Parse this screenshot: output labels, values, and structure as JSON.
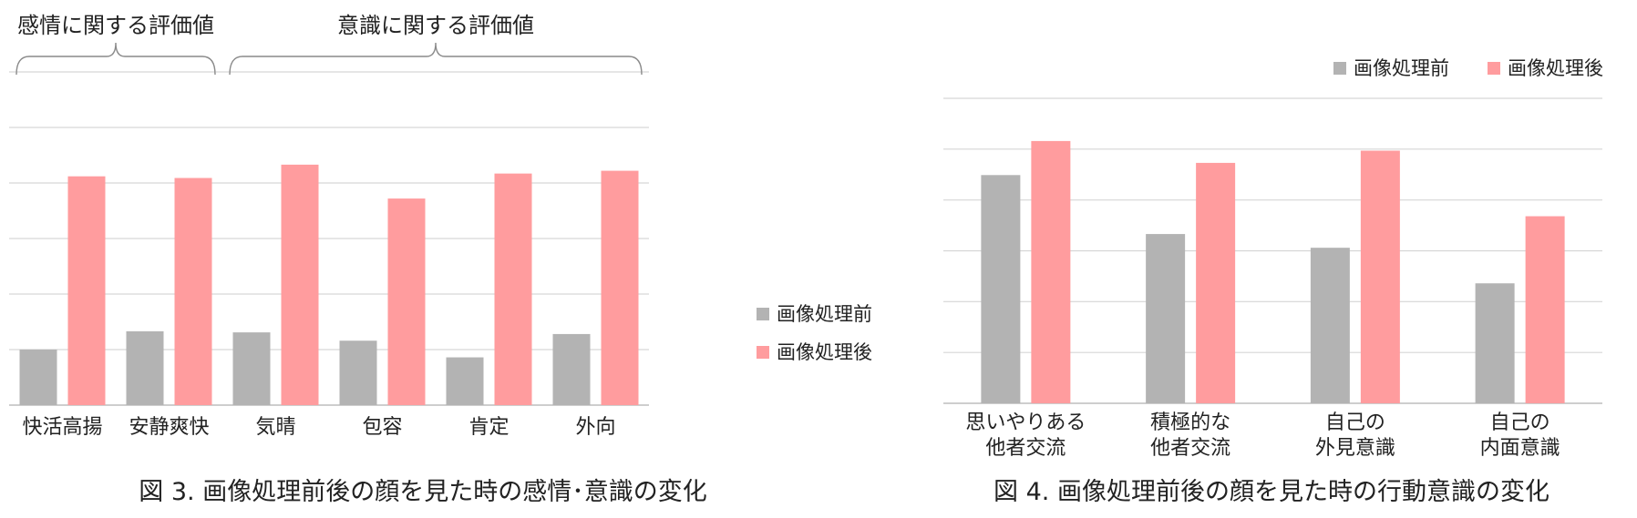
{
  "colors": {
    "before": "#b3b3b3",
    "after": "#ff9c9e",
    "grid": "#d6d6d6",
    "axis": "#bdbdbd",
    "brace": "#8a8a8a"
  },
  "chart_data": [
    {
      "type": "bar",
      "caption": "図 3.  画像処理前後の顔を見た時の感情･意識の変化",
      "categories": [
        "快活高揚",
        "安静爽快",
        "気晴",
        "包容",
        "肯定",
        "外向"
      ],
      "series": [
        {
          "name": "画像処理前",
          "values": [
            1.0,
            1.33,
            1.31,
            1.16,
            0.86,
            1.28
          ]
        },
        {
          "name": "画像処理後",
          "values": [
            4.12,
            4.09,
            4.33,
            3.72,
            4.17,
            4.22
          ]
        }
      ],
      "group_labels": [
        {
          "label": "感情に関する評価値",
          "from": 0,
          "to": 1
        },
        {
          "label": "意識に関する評価値",
          "from": 2,
          "to": 5
        }
      ],
      "ylim": [
        0,
        6
      ],
      "grid": true,
      "legend_position": "right"
    },
    {
      "type": "bar",
      "caption": "図 4.  画像処理前後の顔を見た時の行動意識の変化",
      "categories": [
        [
          "思いやりある",
          "他者交流"
        ],
        [
          "積極的な",
          "他者交流"
        ],
        [
          "自己の",
          "外見意識"
        ],
        [
          "自己の",
          "内面意識"
        ]
      ],
      "series": [
        {
          "name": "画像処理前",
          "values": [
            4.49,
            3.33,
            3.06,
            2.36
          ]
        },
        {
          "name": "画像処理後",
          "values": [
            5.16,
            4.73,
            4.97,
            3.68
          ]
        }
      ],
      "ylim": [
        0,
        6
      ],
      "grid": true,
      "legend_position": "top-right"
    }
  ]
}
